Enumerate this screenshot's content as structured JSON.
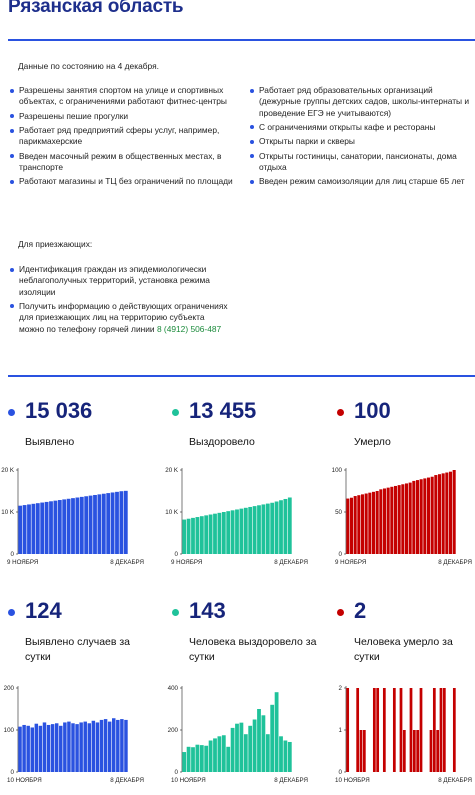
{
  "page": {
    "title": "Рязанская область",
    "as_of": "Данные по состоянию на 4 декабря.",
    "measures_left": [
      "Разрешены занятия спортом на улице и спортивных объектах, с ограничениями работают фитнес-центры",
      "Разрешены пешие прогулки",
      "Работает ряд предприятий сферы услуг, например, парикмахерские",
      "Введен масочный режим в общественных местах, в транспорте",
      "Работают магазины и ТЦ без ограничений по площади"
    ],
    "measures_right": [
      "Работает ряд образовательных организаций (дежурные группы детских садов, школы-интернаты и проведение ЕГЭ не учитываются)",
      "С ограничениями открыты кафе и рестораны",
      "Открыты парки и скверы",
      "Открыты гостиницы, санатории, пансионаты, дома отдыха",
      "Введен режим самоизоляции для лиц старше 65 лет"
    ],
    "visitors_heading": "Для приезжающих:",
    "visitors": [
      "Идентификация граждан из эпидемиологически неблагополучных территорий, установка режима изоляции"
    ],
    "visitors_info": "Получить информацию о действующих ограничениях для приезжающих лиц на территорию субъекта можно по телефону горячей линии",
    "hotline": "8 (4912) 506-487"
  },
  "colors": {
    "blue": "#2a52e0",
    "green": "#1fc29a",
    "red": "#c40000",
    "numbers": "#16247a"
  },
  "stats": [
    {
      "value": "15 036",
      "label": "Выявлено",
      "color": "#2a52e0"
    },
    {
      "value": "13 455",
      "label": "Выздоровело",
      "color": "#1fc29a"
    },
    {
      "value": "100",
      "label": "Умерло",
      "color": "#c40000"
    },
    {
      "value": "124",
      "label": "Выявлено случаев за сутки",
      "color": "#2a52e0"
    },
    {
      "value": "143",
      "label": "Человека выздоровело за сутки",
      "color": "#1fc29a"
    },
    {
      "value": "2",
      "label": "Человека умерло за сутки",
      "color": "#c40000"
    }
  ],
  "chart_data": [
    {
      "type": "bar",
      "color": "#2a52e0",
      "y_ticks": [
        "0",
        "10 K",
        "20 K"
      ],
      "y_tick_values": [
        0,
        10000,
        20000
      ],
      "ylim": [
        0,
        20000
      ],
      "x_start": "9 НОЯБРЯ",
      "x_end": "8 ДЕКАБРЯ",
      "values": [
        11500,
        11650,
        11800,
        11950,
        12100,
        12250,
        12400,
        12550,
        12700,
        12850,
        13000,
        13150,
        13300,
        13450,
        13600,
        13750,
        13900,
        14050,
        14200,
        14350,
        14500,
        14650,
        14800,
        14950,
        15036
      ]
    },
    {
      "type": "bar",
      "color": "#1fc29a",
      "y_ticks": [
        "0",
        "10 K",
        "20 K"
      ],
      "y_tick_values": [
        0,
        10000,
        20000
      ],
      "ylim": [
        0,
        20000
      ],
      "x_start": "9 НОЯБРЯ",
      "x_end": "8 ДЕКАБРЯ",
      "values": [
        8200,
        8400,
        8600,
        8800,
        9000,
        9200,
        9400,
        9600,
        9800,
        10000,
        10200,
        10400,
        10600,
        10800,
        11000,
        11200,
        11400,
        11600,
        11800,
        12000,
        12200,
        12500,
        12800,
        13100,
        13455
      ]
    },
    {
      "type": "bar",
      "color": "#c40000",
      "y_ticks": [
        "0",
        "50",
        "100"
      ],
      "y_tick_values": [
        0,
        50,
        100
      ],
      "ylim": [
        0,
        100
      ],
      "x_start": "9 НОЯБРЯ",
      "x_end": "8 ДЕКАБРЯ",
      "values": [
        66,
        67,
        69,
        70,
        71,
        72,
        73,
        74,
        75,
        77,
        78,
        79,
        80,
        81,
        82,
        83,
        84,
        85,
        87,
        88,
        89,
        90,
        91,
        92,
        94,
        95,
        96,
        97,
        98,
        100
      ]
    },
    {
      "type": "bar",
      "color": "#2a52e0",
      "y_ticks": [
        "0",
        "100",
        "200"
      ],
      "y_tick_values": [
        0,
        100,
        200
      ],
      "ylim": [
        0,
        200
      ],
      "x_start": "10 НОЯБРЯ",
      "x_end": "8 ДЕКАБРЯ",
      "values": [
        108,
        112,
        110,
        106,
        115,
        110,
        118,
        112,
        114,
        116,
        110,
        118,
        120,
        116,
        114,
        118,
        120,
        116,
        122,
        118,
        124,
        126,
        120,
        128,
        124,
        126,
        124
      ]
    },
    {
      "type": "bar",
      "color": "#1fc29a",
      "y_ticks": [
        "0",
        "200",
        "400"
      ],
      "y_tick_values": [
        0,
        200,
        400
      ],
      "ylim": [
        0,
        400
      ],
      "x_start": "10 НОЯБРЯ",
      "x_end": "8 ДЕКАБРЯ",
      "values": [
        95,
        120,
        118,
        130,
        128,
        125,
        150,
        160,
        170,
        175,
        120,
        210,
        230,
        235,
        180,
        220,
        250,
        300,
        270,
        180,
        320,
        380,
        170,
        150,
        143
      ]
    },
    {
      "type": "bar",
      "color": "#c40000",
      "y_ticks": [
        "0",
        "1",
        "2"
      ],
      "y_tick_values": [
        0,
        1,
        2
      ],
      "ylim": [
        0,
        2
      ],
      "x_start": "10 НОЯБРЯ",
      "x_end": "8 ДЕКАБРЯ",
      "values": [
        2,
        0,
        0,
        2,
        1,
        1,
        0,
        0,
        2,
        2,
        0,
        2,
        0,
        0,
        2,
        0,
        2,
        1,
        0,
        2,
        1,
        1,
        2,
        0,
        0,
        1,
        2,
        1,
        2,
        2,
        0,
        0,
        2
      ]
    }
  ]
}
